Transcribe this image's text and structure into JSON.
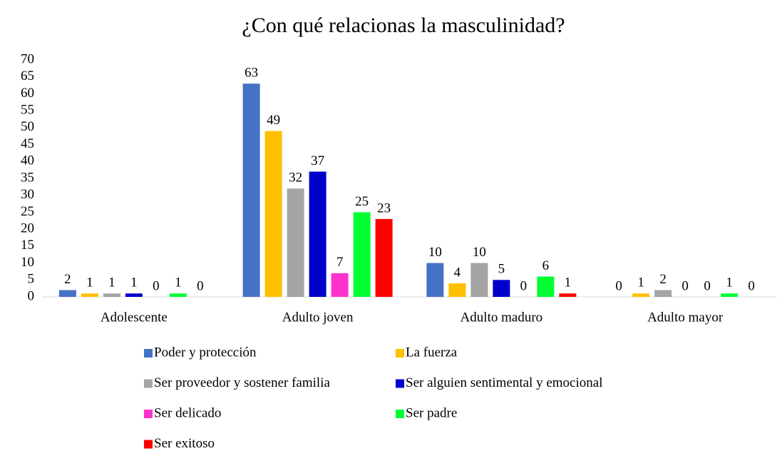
{
  "chart_data": {
    "type": "bar",
    "title": "¿Con qué relacionas la masculinidad?",
    "categories": [
      "Adolescente",
      "Adulto joven",
      "Adulto maduro",
      "Adulto mayor"
    ],
    "series": [
      {
        "name": "Poder y protección",
        "color": "#4472c4",
        "values": [
          2,
          63,
          10,
          0
        ]
      },
      {
        "name": "La fuerza",
        "color": "#ffc000",
        "values": [
          1,
          49,
          4,
          1
        ]
      },
      {
        "name": "Ser proveedor y sostener familia",
        "color": "#a5a5a5",
        "values": [
          1,
          32,
          10,
          2
        ]
      },
      {
        "name": "Ser alguien sentimental y emocional",
        "color": "#0000cc",
        "values": [
          1,
          37,
          5,
          0
        ]
      },
      {
        "name": "Ser delicado",
        "color": "#ff33cc",
        "values": [
          0,
          7,
          0,
          0
        ]
      },
      {
        "name": "Ser padre",
        "color": "#00ff33",
        "values": [
          1,
          25,
          6,
          1
        ]
      },
      {
        "name": "Ser exitoso",
        "color": "#ff0000",
        "values": [
          0,
          23,
          1,
          0
        ]
      }
    ],
    "ylim": [
      0,
      70
    ],
    "yticks": [
      0,
      5,
      10,
      15,
      20,
      25,
      30,
      35,
      40,
      45,
      50,
      55,
      60,
      65,
      70
    ],
    "grid": false,
    "legend": "bottom"
  }
}
